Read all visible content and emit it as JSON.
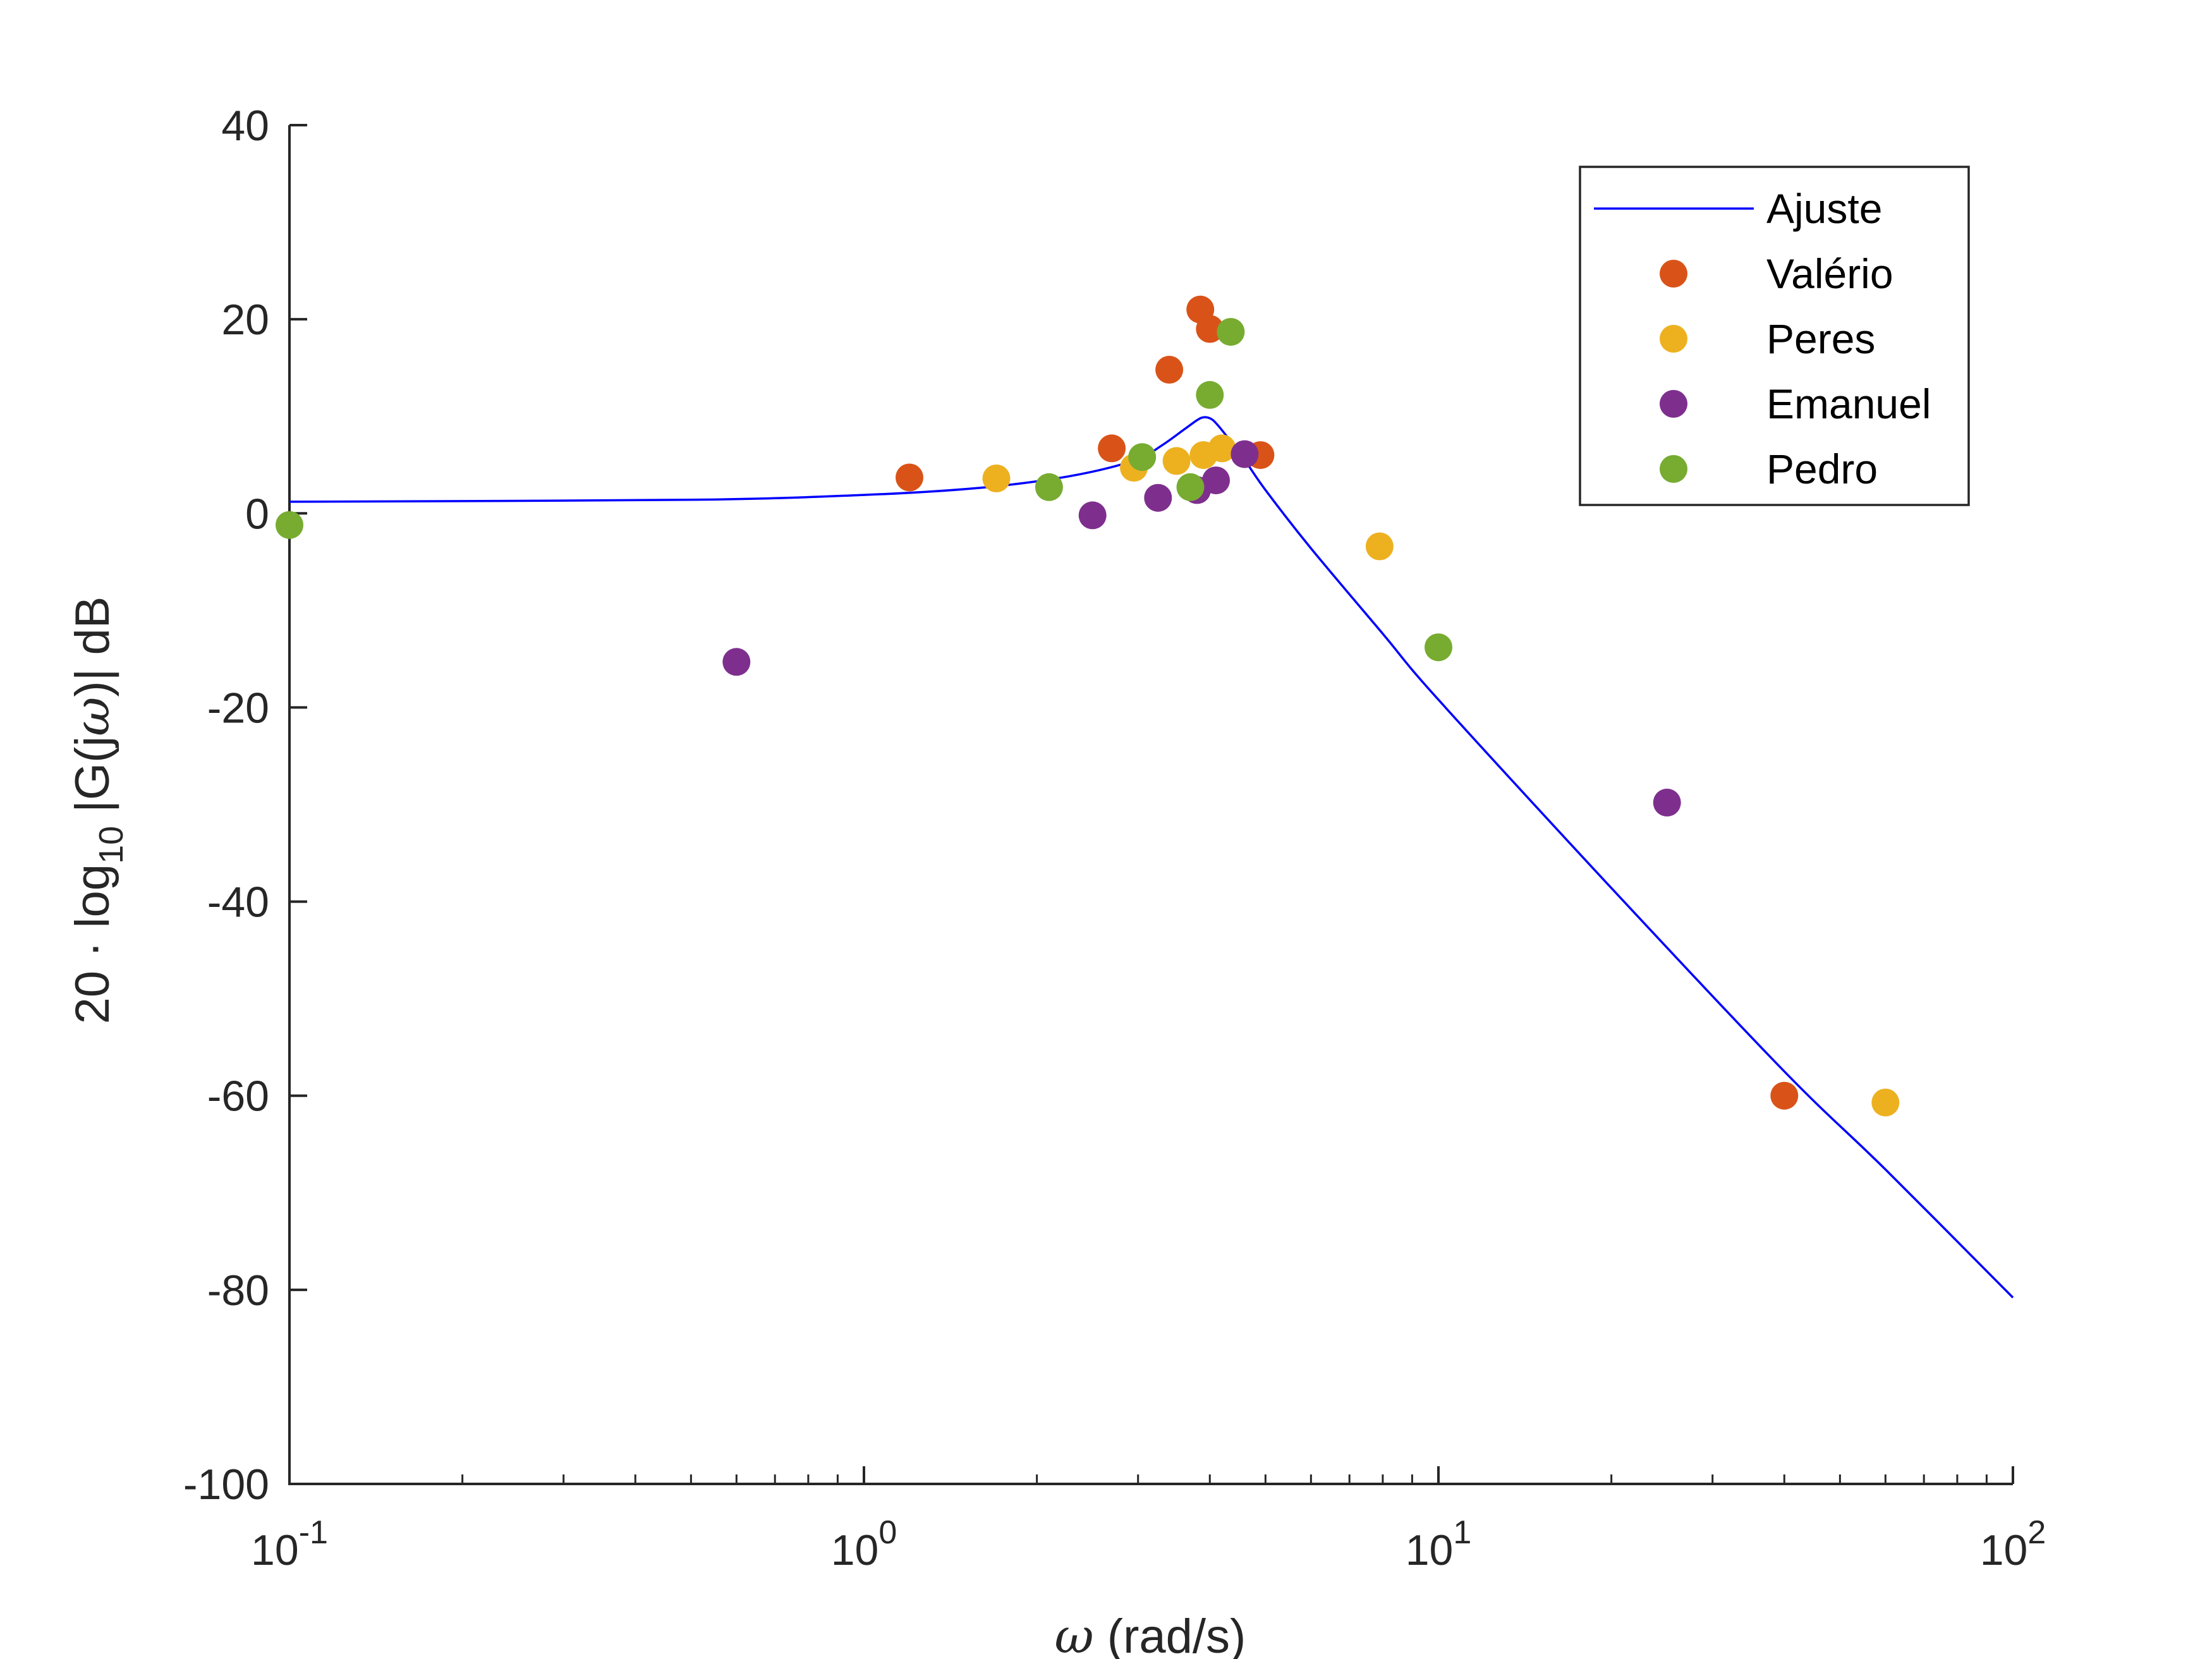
{
  "chart_data": {
    "type": "scatter",
    "xscale": "log",
    "xlim": [
      0.1,
      100
    ],
    "ylim": [
      -100,
      40
    ],
    "y_ticks": [
      40,
      20,
      0,
      -20,
      -40,
      -60,
      -80,
      -100
    ],
    "y_tick_labels": [
      "40",
      "20",
      "0",
      "-20",
      "-40",
      "-60",
      "-80",
      "-100"
    ],
    "x_ticks": [
      {
        "value": 0.1,
        "base": "10",
        "exp": "-1"
      },
      {
        "value": 1,
        "base": "10",
        "exp": "0"
      },
      {
        "value": 10,
        "base": "10",
        "exp": "1"
      },
      {
        "value": 100,
        "base": "10",
        "exp": "2"
      }
    ],
    "xlabel": {
      "omega": "ω",
      "rest": " (rad/s)"
    },
    "ylabel": {
      "pre": "20 · log",
      "sub": "10",
      "mid": " |G(j",
      "omega": "ω",
      "post": ")| dB"
    },
    "grid": false,
    "legend_position": "top-right",
    "fit": {
      "name": "Ajuste",
      "color": "#0000ff",
      "x": [
        0.1,
        0.5,
        1,
        1.5,
        2,
        2.5,
        3,
        3.3,
        3.6,
        3.8,
        3.9,
        4.0,
        4.1,
        4.3,
        4.6,
        5,
        6,
        8,
        10,
        20,
        40,
        60,
        100
      ],
      "y": [
        1.2,
        1.4,
        1.9,
        2.5,
        3.3,
        4.3,
        5.6,
        7.0,
        8.6,
        9.6,
        9.9,
        9.8,
        9.3,
        7.8,
        5.5,
        2.4,
        -3.6,
        -12.4,
        -19.2,
        -38.6,
        -57.5,
        -67.6,
        -80.8
      ]
    },
    "series": [
      {
        "name": "Valério",
        "color": "#d95319",
        "points": [
          [
            1.2,
            3.7
          ],
          [
            2.7,
            6.7
          ],
          [
            3.4,
            14.8
          ],
          [
            3.85,
            21.0
          ],
          [
            4.0,
            19.0
          ],
          [
            4.9,
            6.0
          ],
          [
            40,
            -60.0
          ]
        ]
      },
      {
        "name": "Peres",
        "color": "#edb120",
        "points": [
          [
            1.7,
            3.6
          ],
          [
            2.95,
            4.7
          ],
          [
            3.5,
            5.4
          ],
          [
            3.9,
            6.0
          ],
          [
            4.2,
            6.7
          ],
          [
            7.9,
            -3.4
          ],
          [
            60,
            -60.7
          ]
        ]
      },
      {
        "name": "Emanuel",
        "color": "#7e2f8e",
        "points": [
          [
            0.6,
            -15.3
          ],
          [
            2.5,
            -0.2
          ],
          [
            3.25,
            1.6
          ],
          [
            3.8,
            2.4
          ],
          [
            4.1,
            3.4
          ],
          [
            4.6,
            6.1
          ],
          [
            25,
            -29.8
          ]
        ]
      },
      {
        "name": "Pedro",
        "color": "#77ac30",
        "points": [
          [
            0.1,
            -1.2
          ],
          [
            2.1,
            2.7
          ],
          [
            3.05,
            5.8
          ],
          [
            3.7,
            2.7
          ],
          [
            4.0,
            12.2
          ],
          [
            4.35,
            18.7
          ],
          [
            10,
            -13.8
          ]
        ]
      }
    ]
  }
}
